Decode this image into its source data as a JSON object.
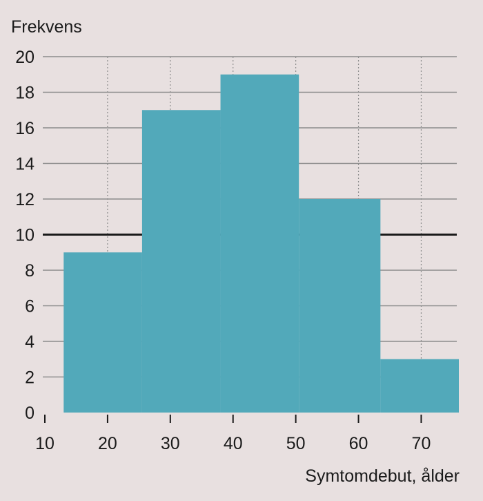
{
  "chart_data": {
    "type": "bar",
    "subtype": "histogram",
    "ylabel": "Frekvens",
    "xlabel": "Symtomdebut, ålder",
    "ylim": [
      0,
      20
    ],
    "xlim": [
      10,
      76
    ],
    "yticks": [
      0,
      2,
      4,
      6,
      8,
      10,
      12,
      14,
      16,
      18,
      20
    ],
    "xticks": [
      10,
      20,
      30,
      40,
      50,
      60,
      70
    ],
    "bins": [
      {
        "x0": 13,
        "x1": 25.5,
        "value": 9
      },
      {
        "x0": 25.5,
        "x1": 38,
        "value": 17
      },
      {
        "x0": 38,
        "x1": 50.5,
        "value": 19
      },
      {
        "x0": 50.5,
        "x1": 63.5,
        "value": 12
      },
      {
        "x0": 63.5,
        "x1": 76,
        "value": 3
      }
    ],
    "reference_line": {
      "y": 10
    },
    "grid": true,
    "colors": {
      "background": "#e8e0e0",
      "bar": "#52a9ba",
      "gridline": "#8c8c8c",
      "reference_line": "#1a1a1a"
    }
  }
}
